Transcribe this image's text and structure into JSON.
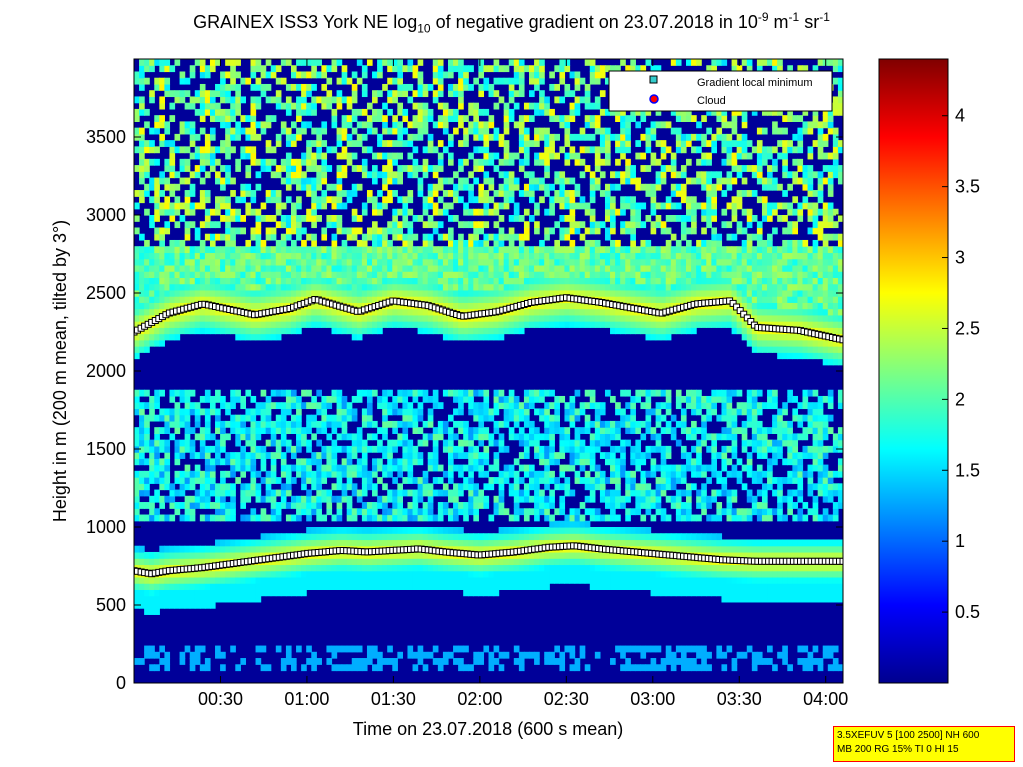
{
  "title": {
    "prefix": "GRAINEX ISS3 York NE log",
    "sub": "10",
    "middle": " of negative gradient on 23.07.2018 in 10",
    "sup1": "-9",
    "m": " m",
    "sup2": "-1",
    "sr": " sr",
    "sup3": "-1"
  },
  "info_box": {
    "line1": "3.5XEFUV 5 [100 2500] NH 600",
    "line2": "MB 200 RG 15% TI 0 HI 15"
  },
  "chart_data": {
    "type": "heatmap",
    "title": "GRAINEX ISS3 York NE log10 of negative gradient on 23.07.2018 in 10^-9 m^-1 sr^-1",
    "xlabel": "Time on 23.07.2018 (600 s mean)",
    "ylabel": "Height in m (200 m mean, tilted by 3°)",
    "xlim_hours": [
      0.0,
      4.1
    ],
    "ylim": [
      0,
      4000
    ],
    "x_ticks": [
      "00:30",
      "01:00",
      "01:30",
      "02:00",
      "02:30",
      "03:00",
      "03:30",
      "04:00"
    ],
    "x_tick_values_hours": [
      0.5,
      1.0,
      1.5,
      2.0,
      2.5,
      3.0,
      3.5,
      4.0
    ],
    "y_ticks": [
      0,
      500,
      1000,
      1500,
      2000,
      2500,
      3000,
      3500
    ],
    "colorbar": {
      "range": [
        0,
        4.4
      ],
      "ticks": [
        0.5,
        1,
        1.5,
        2,
        2.5,
        3,
        3.5,
        4
      ],
      "tick_labels": [
        "0.5",
        "1",
        "1.5",
        "2",
        "2.5",
        "3",
        "3.5",
        "4"
      ],
      "colormap": "jet"
    },
    "legend": {
      "position": "top-right",
      "entries": [
        {
          "label": "Gradient local minimum",
          "marker": "square",
          "color": "#33cccc"
        },
        {
          "label": "Cloud",
          "marker": "circle",
          "color": "#ff0000",
          "edge": "#0000ff"
        }
      ]
    },
    "layers": [
      {
        "name": "lower_layer",
        "height_m": [
          720,
          700,
          720,
          740,
          770,
          800,
          830,
          850,
          840,
          850,
          860,
          840,
          820,
          840,
          870,
          880,
          860,
          840,
          820,
          790,
          780,
          780,
          780
        ],
        "hours": [
          0.0,
          0.1,
          0.2,
          0.4,
          0.6,
          0.8,
          1.0,
          1.2,
          1.35,
          1.5,
          1.65,
          1.8,
          2.0,
          2.2,
          2.4,
          2.55,
          2.7,
          2.9,
          3.1,
          3.4,
          3.6,
          3.8,
          4.1
        ]
      },
      {
        "name": "upper_layer",
        "height_m": [
          2250,
          2370,
          2430,
          2360,
          2400,
          2460,
          2380,
          2450,
          2420,
          2350,
          2380,
          2440,
          2470,
          2440,
          2400,
          2370,
          2430,
          2450,
          2280,
          2260,
          2200
        ],
        "hours": [
          0.0,
          0.2,
          0.4,
          0.7,
          0.9,
          1.05,
          1.3,
          1.5,
          1.7,
          1.9,
          2.1,
          2.3,
          2.5,
          2.7,
          2.9,
          3.05,
          3.25,
          3.45,
          3.6,
          3.85,
          4.1
        ]
      }
    ]
  }
}
